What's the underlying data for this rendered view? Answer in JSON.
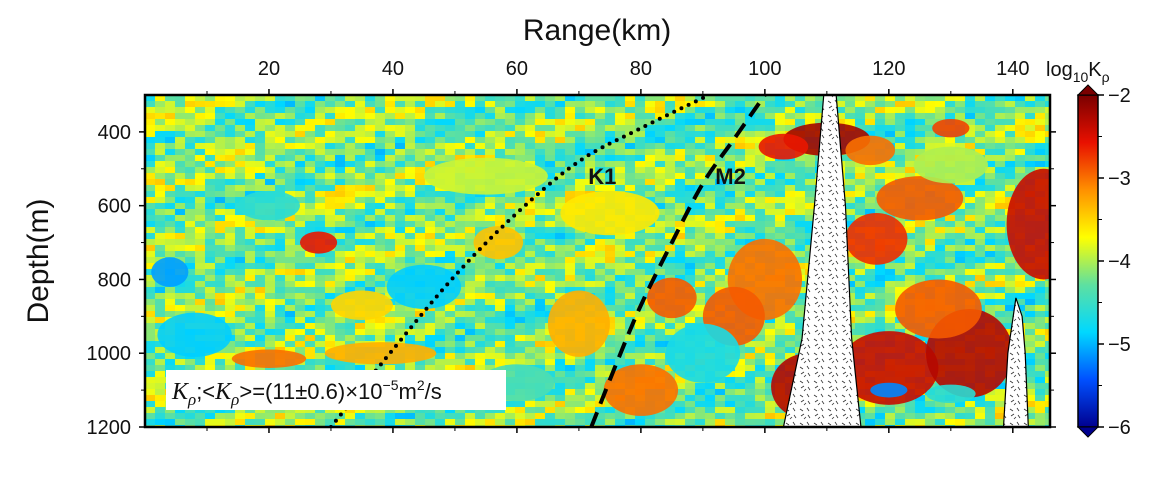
{
  "chart_data": {
    "type": "heatmap",
    "title": "",
    "xlabel": "Range(km)",
    "ylabel": "Depth(m)",
    "x_axis_position": "top",
    "xlim": [
      0,
      146
    ],
    "ylim": [
      300,
      1200
    ],
    "y_inverted": true,
    "x_ticks": [
      20,
      40,
      60,
      80,
      100,
      120,
      140
    ],
    "y_ticks": [
      400,
      600,
      800,
      1000,
      1200
    ],
    "colorbar": {
      "title_main": "log",
      "title_sub": "10",
      "title_var": "K",
      "title_var_sub": "ρ",
      "range": [
        -6,
        -2
      ],
      "ticks": [
        -6,
        -5,
        -4,
        -3,
        -2
      ],
      "colors": [
        "#00008f",
        "#0050ff",
        "#00d8ff",
        "#5ee0a0",
        "#ffff00",
        "#ff9000",
        "#e81000",
        "#7a0000"
      ]
    },
    "annotation": {
      "text_main": "K",
      "text_sub": "ρ",
      "text_mid": ";<",
      "text_main2": "K",
      "text_sub2": "ρ",
      "text_rest": ">=(11",
      "text_pm": "±",
      "text_val2": "0.6)",
      "text_times": "×",
      "text_base": "10",
      "text_exp": "−5",
      "text_unit": "m",
      "text_unit_exp": "2",
      "text_unit_tail": "/s"
    },
    "curves": [
      {
        "name": "K1",
        "style": "dotted",
        "points": [
          [
            30,
            1200
          ],
          [
            40,
            990
          ],
          [
            50,
            790
          ],
          [
            60,
            620
          ],
          [
            70,
            480
          ],
          [
            80,
            390
          ],
          [
            91,
            300
          ]
        ]
      },
      {
        "name": "M2",
        "style": "dashed",
        "points": [
          [
            72,
            1200
          ],
          [
            76,
            1030
          ],
          [
            80,
            870
          ],
          [
            85,
            700
          ],
          [
            90,
            540
          ],
          [
            95,
            420
          ],
          [
            100,
            300
          ]
        ]
      }
    ],
    "curve_labels": [
      {
        "text": "K1",
        "x": 71.5,
        "y": 520
      },
      {
        "text": "M2",
        "x": 92,
        "y": 520
      }
    ],
    "masked_regions": [
      {
        "name": "seamount-1",
        "points": [
          [
            103,
            1200
          ],
          [
            106,
            960
          ],
          [
            108,
            600
          ],
          [
            109.5,
            300
          ],
          [
            111.5,
            300
          ],
          [
            113,
            600
          ],
          [
            114,
            960
          ],
          [
            115.5,
            1200
          ]
        ]
      },
      {
        "name": "seamount-2",
        "points": [
          [
            138.5,
            1200
          ],
          [
            139.2,
            1000
          ],
          [
            140.5,
            850
          ],
          [
            141.5,
            900
          ],
          [
            142,
            1000
          ],
          [
            142.5,
            1200
          ]
        ]
      }
    ],
    "anomalies": [
      {
        "x": 110,
        "y": 420,
        "rx": 7,
        "ry": 45,
        "v": -2.2
      },
      {
        "x": 103,
        "y": 440,
        "rx": 4,
        "ry": 35,
        "v": -2.6
      },
      {
        "x": 117,
        "y": 450,
        "rx": 4,
        "ry": 40,
        "v": -3.0
      },
      {
        "x": 130,
        "y": 390,
        "rx": 3,
        "ry": 25,
        "v": -2.8
      },
      {
        "x": 145,
        "y": 650,
        "rx": 6,
        "ry": 150,
        "v": -2.4
      },
      {
        "x": 125,
        "y": 580,
        "rx": 7,
        "ry": 60,
        "v": -2.9
      },
      {
        "x": 118,
        "y": 690,
        "rx": 5,
        "ry": 70,
        "v": -2.7
      },
      {
        "x": 100,
        "y": 800,
        "rx": 6,
        "ry": 110,
        "v": -3.0
      },
      {
        "x": 95,
        "y": 900,
        "rx": 5,
        "ry": 80,
        "v": -2.9
      },
      {
        "x": 107,
        "y": 1090,
        "rx": 6,
        "ry": 90,
        "v": -2.3
      },
      {
        "x": 85,
        "y": 850,
        "rx": 4,
        "ry": 55,
        "v": -2.9
      },
      {
        "x": 120,
        "y": 1040,
        "rx": 8,
        "ry": 100,
        "v": -2.4
      },
      {
        "x": 133,
        "y": 1000,
        "rx": 7,
        "ry": 120,
        "v": -2.3
      },
      {
        "x": 128,
        "y": 880,
        "rx": 7,
        "ry": 80,
        "v": -2.9
      },
      {
        "x": 80,
        "y": 1100,
        "rx": 6,
        "ry": 70,
        "v": -3.0
      },
      {
        "x": 70,
        "y": 920,
        "rx": 5,
        "ry": 90,
        "v": -3.3
      },
      {
        "x": 57,
        "y": 700,
        "rx": 4,
        "ry": 45,
        "v": -3.4
      },
      {
        "x": 55,
        "y": 520,
        "rx": 10,
        "ry": 50,
        "v": -3.9
      },
      {
        "x": 28,
        "y": 700,
        "rx": 3,
        "ry": 30,
        "v": -2.6
      },
      {
        "x": 38,
        "y": 1000,
        "rx": 9,
        "ry": 30,
        "v": -3.3
      },
      {
        "x": 20,
        "y": 1015,
        "rx": 6,
        "ry": 25,
        "v": -3.0
      },
      {
        "x": 45,
        "y": 820,
        "rx": 6,
        "ry": 60,
        "v": -4.9
      },
      {
        "x": 4,
        "y": 780,
        "rx": 3,
        "ry": 40,
        "v": -5.1
      },
      {
        "x": 8,
        "y": 950,
        "rx": 6,
        "ry": 60,
        "v": -4.9
      },
      {
        "x": 90,
        "y": 1000,
        "rx": 6,
        "ry": 80,
        "v": -4.7
      },
      {
        "x": 120,
        "y": 1100,
        "rx": 3,
        "ry": 20,
        "v": -5.2
      },
      {
        "x": 130,
        "y": 1110,
        "rx": 4,
        "ry": 25,
        "v": -4.6
      },
      {
        "x": 20,
        "y": 600,
        "rx": 5,
        "ry": 40,
        "v": -4.6
      },
      {
        "x": 130,
        "y": 490,
        "rx": 6,
        "ry": 50,
        "v": -4.0
      },
      {
        "x": 60,
        "y": 1080,
        "rx": 6,
        "ry": 50,
        "v": -4.4
      },
      {
        "x": 75,
        "y": 620,
        "rx": 8,
        "ry": 60,
        "v": -3.6
      },
      {
        "x": 35,
        "y": 870,
        "rx": 5,
        "ry": 40,
        "v": -3.5
      }
    ]
  }
}
